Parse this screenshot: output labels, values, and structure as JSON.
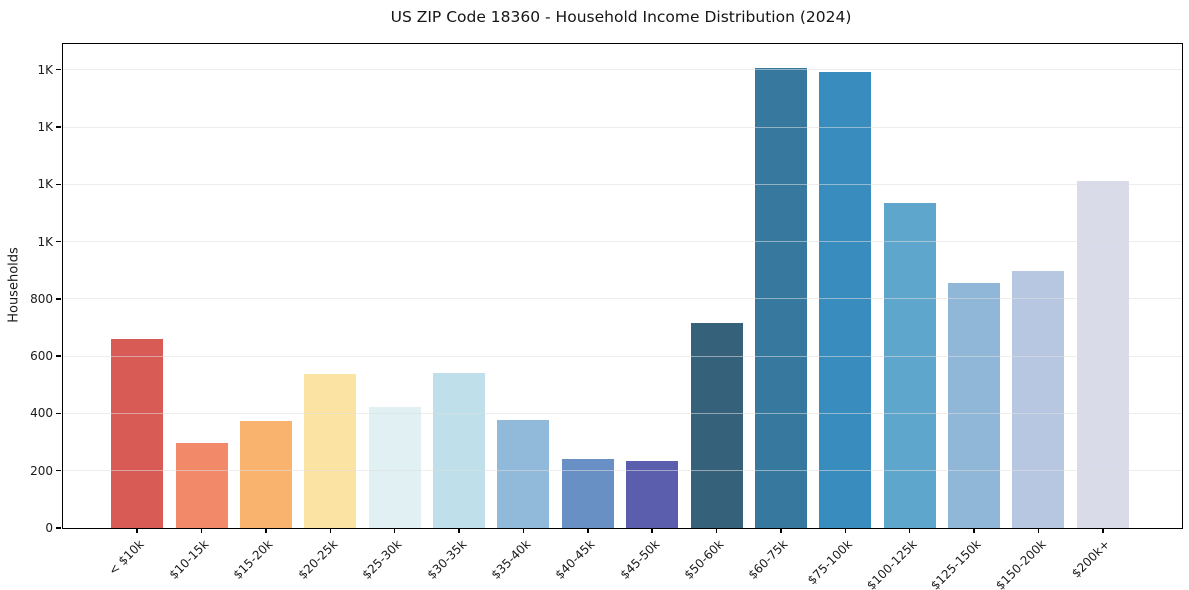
{
  "chart_data": {
    "type": "bar",
    "title": "US ZIP Code 18360 - Household Income Distribution (2024)",
    "xlabel": "",
    "ylabel": "Households",
    "categories": [
      "< $10k",
      "$10-15k",
      "$15-20k",
      "$20-25k",
      "$25-30k",
      "$30-35k",
      "$35-40k",
      "$40-45k",
      "$45-50k",
      "$50-60k",
      "$60-75k",
      "$75-100k",
      "$100-125k",
      "$125-150k",
      "$150-200k",
      "$200k+"
    ],
    "values": [
      660,
      296,
      375,
      538,
      424,
      541,
      378,
      240,
      234,
      716,
      1607,
      1594,
      1135,
      854,
      898,
      1210
    ],
    "bar_colors": [
      "#d95b55",
      "#f28968",
      "#f9b36e",
      "#fbe3a3",
      "#e0f0f3",
      "#bfdfeb",
      "#90b9da",
      "#6890c4",
      "#5a5ead",
      "#36617a",
      "#36789e",
      "#388cbe",
      "#5ea6cc",
      "#90b6d8",
      "#b7c7e1",
      "#d9dbe9"
    ],
    "yticks": [
      {
        "value": 0,
        "label": "0"
      },
      {
        "value": 200,
        "label": "200"
      },
      {
        "value": 400,
        "label": "400"
      },
      {
        "value": 600,
        "label": "600"
      },
      {
        "value": 800,
        "label": "800"
      },
      {
        "value": 1000,
        "label": "1K"
      },
      {
        "value": 1200,
        "label": "1K"
      },
      {
        "value": 1400,
        "label": "1K"
      },
      {
        "value": 1600,
        "label": "1K"
      }
    ],
    "ylim": [
      0,
      1690
    ],
    "grid": true,
    "legend_position": "none"
  }
}
